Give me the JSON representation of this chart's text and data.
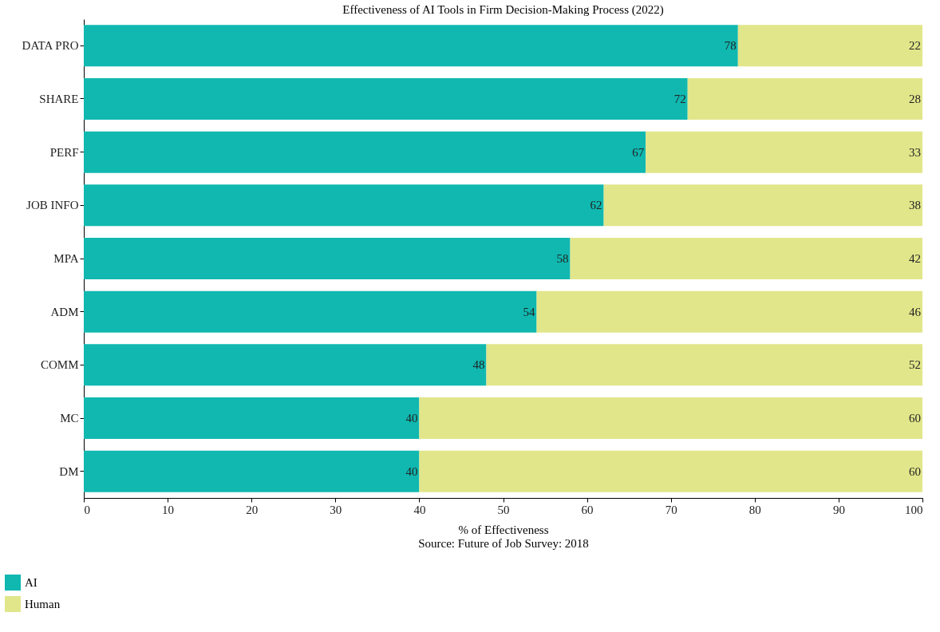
{
  "chart_data": {
    "type": "bar",
    "orientation": "horizontal",
    "stacked": true,
    "title": "Effectiveness of AI Tools in Firm Decision-Making Process (2022)",
    "xlabel": "% of Effectiveness",
    "annotations": [
      "Source: Future of Job Survey: 2018"
    ],
    "categories": [
      "DATA PRO",
      "SHARE",
      "PERF",
      "JOB INFO",
      "MPA",
      "ADM",
      "COMM",
      "MC",
      "DM"
    ],
    "series": [
      {
        "name": "AI",
        "color": "#10b8b0",
        "values": [
          78,
          72,
          67,
          62,
          58,
          54,
          48,
          40,
          40
        ]
      },
      {
        "name": "Human",
        "color": "#e1e68a",
        "values": [
          22,
          28,
          33,
          38,
          42,
          46,
          52,
          60,
          60
        ]
      }
    ],
    "xlim": [
      0,
      100
    ],
    "xticks": [
      0,
      10,
      20,
      30,
      40,
      50,
      60,
      70,
      80,
      90,
      100
    ],
    "data_labels": true,
    "grid": false,
    "legend": "bottom left"
  }
}
